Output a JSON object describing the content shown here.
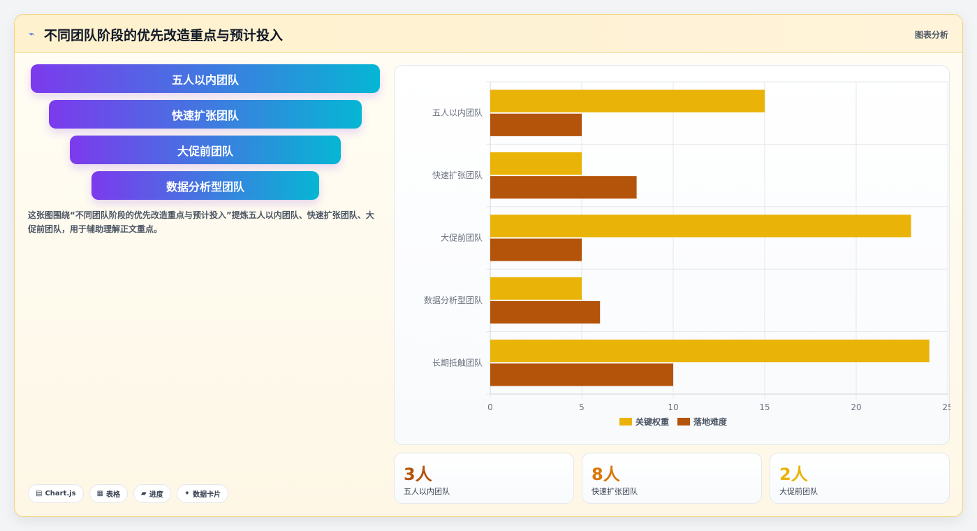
{
  "header": {
    "title": "不同团队阶段的优先改造重点与预计投入",
    "tag": "图表分析"
  },
  "funnel": {
    "items": [
      "五人以内团队",
      "快速扩张团队",
      "大促前团队",
      "数据分析型团队"
    ]
  },
  "description": "这张图围绕“不同团队阶段的优先改造重点与预计投入”提炼五人以内团队、快速扩张团队、大促前团队，用于辅助理解正文重点。",
  "chips": [
    {
      "icon": "chart-icon",
      "glyph": "▤",
      "label": "Chart.js"
    },
    {
      "icon": "table-icon",
      "glyph": "▦",
      "label": "表格"
    },
    {
      "icon": "progress-icon",
      "glyph": "▰",
      "label": "进度"
    },
    {
      "icon": "sparkle-icon",
      "glyph": "✦",
      "label": "数据卡片"
    }
  ],
  "stats": [
    {
      "value": "3人",
      "label": "五人以内团队",
      "color": "#b45309"
    },
    {
      "value": "8人",
      "label": "快速扩张团队",
      "color": "#d97706"
    },
    {
      "value": "2人",
      "label": "大促前团队",
      "color": "#eab308"
    }
  ],
  "colors": {
    "series1": "#eab308",
    "series2": "#b4530a",
    "grid": "#e5e7eb",
    "tick": "#6b7280"
  },
  "chart_data": {
    "type": "bar",
    "orientation": "horizontal",
    "categories": [
      "五人以内团队",
      "快速扩张团队",
      "大促前团队",
      "数据分析型团队",
      "长期抵触团队"
    ],
    "series": [
      {
        "name": "关键权重",
        "values": [
          15,
          5,
          23,
          5,
          24
        ]
      },
      {
        "name": "落地难度",
        "values": [
          5,
          8,
          5,
          6,
          10
        ]
      }
    ],
    "xlim": [
      0,
      25
    ],
    "xticks": [
      0,
      5,
      10,
      15,
      20,
      25
    ],
    "grid": true,
    "legend": "bottom"
  }
}
